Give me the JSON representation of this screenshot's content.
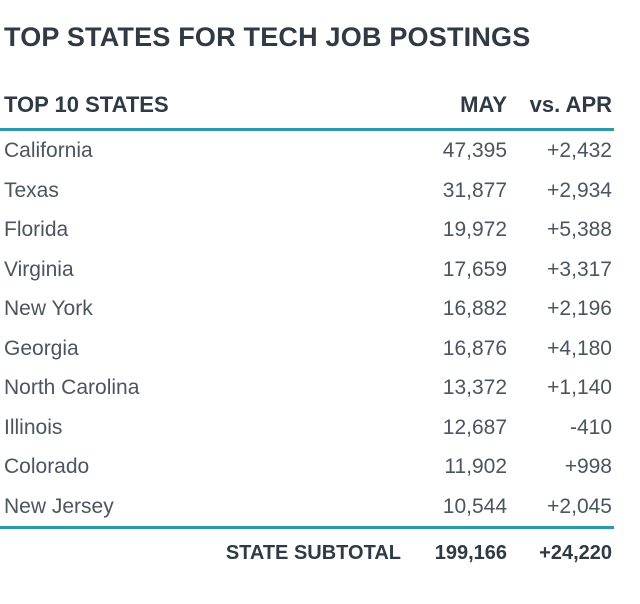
{
  "title": "TOP STATES FOR TECH JOB POSTINGS",
  "chart_data": {
    "type": "table",
    "title": "TOP STATES FOR TECH JOB POSTINGS",
    "columns": [
      "TOP 10 STATES",
      "MAY",
      "vs. APR"
    ],
    "rows": [
      {
        "state": "California",
        "may": "47,395",
        "vs_apr": "+2,432"
      },
      {
        "state": "Texas",
        "may": "31,877",
        "vs_apr": "+2,934"
      },
      {
        "state": "Florida",
        "may": "19,972",
        "vs_apr": "+5,388"
      },
      {
        "state": "Virginia",
        "may": "17,659",
        "vs_apr": "+3,317"
      },
      {
        "state": "New York",
        "may": "16,882",
        "vs_apr": "+2,196"
      },
      {
        "state": "Georgia",
        "may": "16,876",
        "vs_apr": "+4,180"
      },
      {
        "state": "North Carolina",
        "may": "13,372",
        "vs_apr": "+1,140"
      },
      {
        "state": "Illinois",
        "may": "12,687",
        "vs_apr": "-410"
      },
      {
        "state": "Colorado",
        "may": "11,902",
        "vs_apr": "+998"
      },
      {
        "state": "New Jersey",
        "may": "10,544",
        "vs_apr": "+2,045"
      }
    ],
    "subtotal": {
      "label": "STATE SUBTOTAL",
      "may": "199,166",
      "vs_apr": "+24,220"
    }
  },
  "colors": {
    "accent_rule": "#2a9aa8",
    "text": "#4a5561",
    "heading": "#2f3a45"
  }
}
